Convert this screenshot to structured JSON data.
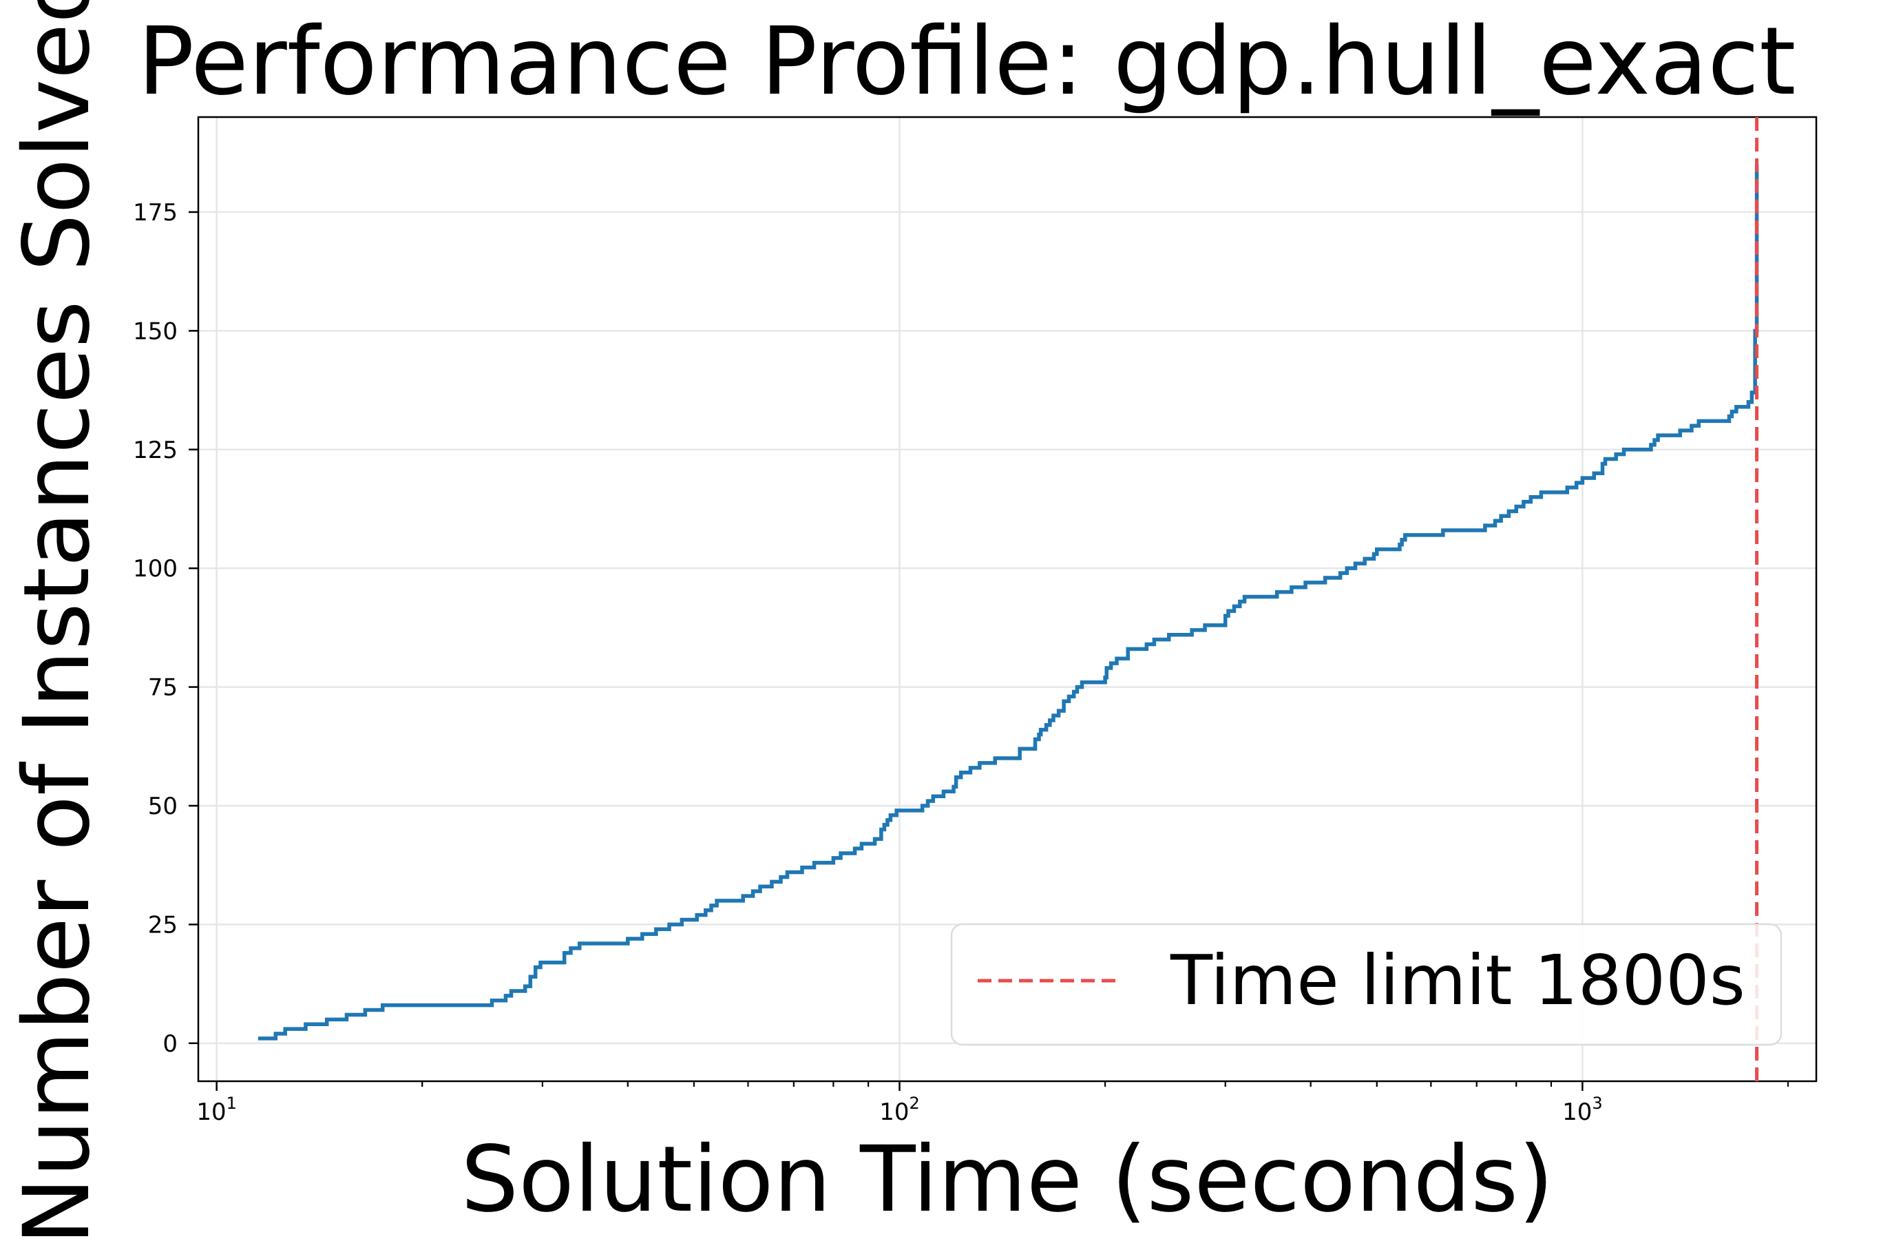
{
  "chart_data": {
    "type": "line",
    "title": "Performance Profile: gdp.hull_exact",
    "xlabel": "Solution Time (seconds)",
    "ylabel": "Number of Instances Solved",
    "xscale": "log",
    "xlim": [
      9.4,
      2200
    ],
    "ylim": [
      -8,
      195
    ],
    "xticks": [
      {
        "base": "10",
        "exp": "1",
        "value": 10
      },
      {
        "base": "10",
        "exp": "2",
        "value": 100
      },
      {
        "base": "10",
        "exp": "3",
        "value": 1000
      }
    ],
    "yticks": [
      0,
      25,
      50,
      75,
      100,
      125,
      150,
      175
    ],
    "grid": true,
    "legend": {
      "placement": "lower-right",
      "entries": [
        "Time limit 1800s"
      ]
    },
    "series": [
      {
        "color": "#1f77b4",
        "style": "step",
        "points": [
          [
            11.5,
            1
          ],
          [
            12.2,
            2
          ],
          [
            12.6,
            3
          ],
          [
            13.5,
            4
          ],
          [
            14.5,
            5
          ],
          [
            15.5,
            6
          ],
          [
            16.5,
            7
          ],
          [
            17.5,
            8
          ],
          [
            25.0,
            8
          ],
          [
            25.3,
            9
          ],
          [
            26.5,
            10
          ],
          [
            27.0,
            11
          ],
          [
            28.3,
            12
          ],
          [
            28.8,
            14
          ],
          [
            29.3,
            16
          ],
          [
            29.8,
            17
          ],
          [
            32.3,
            19
          ],
          [
            33.0,
            20
          ],
          [
            34.0,
            21
          ],
          [
            40.0,
            22
          ],
          [
            42.0,
            23
          ],
          [
            44.0,
            24
          ],
          [
            46.0,
            25
          ],
          [
            48.0,
            26
          ],
          [
            50.5,
            27
          ],
          [
            52.0,
            28
          ],
          [
            53.0,
            29
          ],
          [
            54.0,
            30
          ],
          [
            59.0,
            31
          ],
          [
            61.0,
            32
          ],
          [
            62.5,
            33
          ],
          [
            65.0,
            34
          ],
          [
            67.0,
            35
          ],
          [
            68.5,
            36
          ],
          [
            72.0,
            37
          ],
          [
            75.0,
            38
          ],
          [
            80.0,
            39
          ],
          [
            82.0,
            40
          ],
          [
            86.0,
            41
          ],
          [
            88.0,
            42
          ],
          [
            92.0,
            43
          ],
          [
            94.0,
            45
          ],
          [
            95.0,
            46
          ],
          [
            96.0,
            47
          ],
          [
            97.0,
            48
          ],
          [
            99.0,
            49
          ],
          [
            108.0,
            50
          ],
          [
            110.0,
            51
          ],
          [
            112.0,
            52
          ],
          [
            116.0,
            53
          ],
          [
            120.0,
            54
          ],
          [
            121.0,
            56
          ],
          [
            123.0,
            57
          ],
          [
            127.0,
            58
          ],
          [
            131.0,
            59
          ],
          [
            138.0,
            60
          ],
          [
            150.0,
            62
          ],
          [
            158.0,
            64
          ],
          [
            160.0,
            65
          ],
          [
            161.0,
            66
          ],
          [
            164.0,
            67
          ],
          [
            166.0,
            68
          ],
          [
            168.0,
            69
          ],
          [
            171.0,
            70
          ],
          [
            174.0,
            72
          ],
          [
            177.0,
            73
          ],
          [
            180.0,
            74
          ],
          [
            182.0,
            75
          ],
          [
            185.0,
            76
          ],
          [
            200.0,
            77
          ],
          [
            201.0,
            79
          ],
          [
            204.0,
            80
          ],
          [
            208.0,
            81
          ],
          [
            216.0,
            83
          ],
          [
            230.0,
            84
          ],
          [
            236.0,
            85
          ],
          [
            248.0,
            86
          ],
          [
            268.0,
            87
          ],
          [
            280.0,
            88
          ],
          [
            300.0,
            90
          ],
          [
            303.0,
            91
          ],
          [
            309.0,
            92
          ],
          [
            315.0,
            93
          ],
          [
            320.0,
            94
          ],
          [
            357.0,
            95
          ],
          [
            375.0,
            96
          ],
          [
            393.0,
            97
          ],
          [
            420.0,
            98
          ],
          [
            442.0,
            99
          ],
          [
            452.0,
            100
          ],
          [
            465.0,
            101
          ],
          [
            480.0,
            102
          ],
          [
            495.0,
            103
          ],
          [
            500.0,
            104
          ],
          [
            540.0,
            105
          ],
          [
            544.0,
            106
          ],
          [
            550.0,
            107
          ],
          [
            625.0,
            108
          ],
          [
            720.0,
            109
          ],
          [
            745.0,
            110
          ],
          [
            760.0,
            111
          ],
          [
            780.0,
            112
          ],
          [
            800.0,
            113
          ],
          [
            820.0,
            114
          ],
          [
            840.0,
            115
          ],
          [
            870.0,
            116
          ],
          [
            950.0,
            117
          ],
          [
            980.0,
            118
          ],
          [
            1000.0,
            119
          ],
          [
            1040.0,
            120
          ],
          [
            1070.0,
            122
          ],
          [
            1080.0,
            123
          ],
          [
            1120.0,
            124
          ],
          [
            1150.0,
            125
          ],
          [
            1260.0,
            126
          ],
          [
            1275.0,
            127
          ],
          [
            1290.0,
            128
          ],
          [
            1390.0,
            129
          ],
          [
            1445.0,
            130
          ],
          [
            1480.0,
            131
          ],
          [
            1640.0,
            132
          ],
          [
            1655.0,
            133
          ],
          [
            1680.0,
            134
          ],
          [
            1750.0,
            135
          ],
          [
            1770.0,
            137
          ],
          [
            1790.0,
            150
          ],
          [
            1800.0,
            185
          ]
        ]
      }
    ],
    "reference_lines": [
      {
        "orientation": "vertical",
        "x": 1800,
        "color": "#e84c4c",
        "style": "dashed"
      }
    ]
  }
}
